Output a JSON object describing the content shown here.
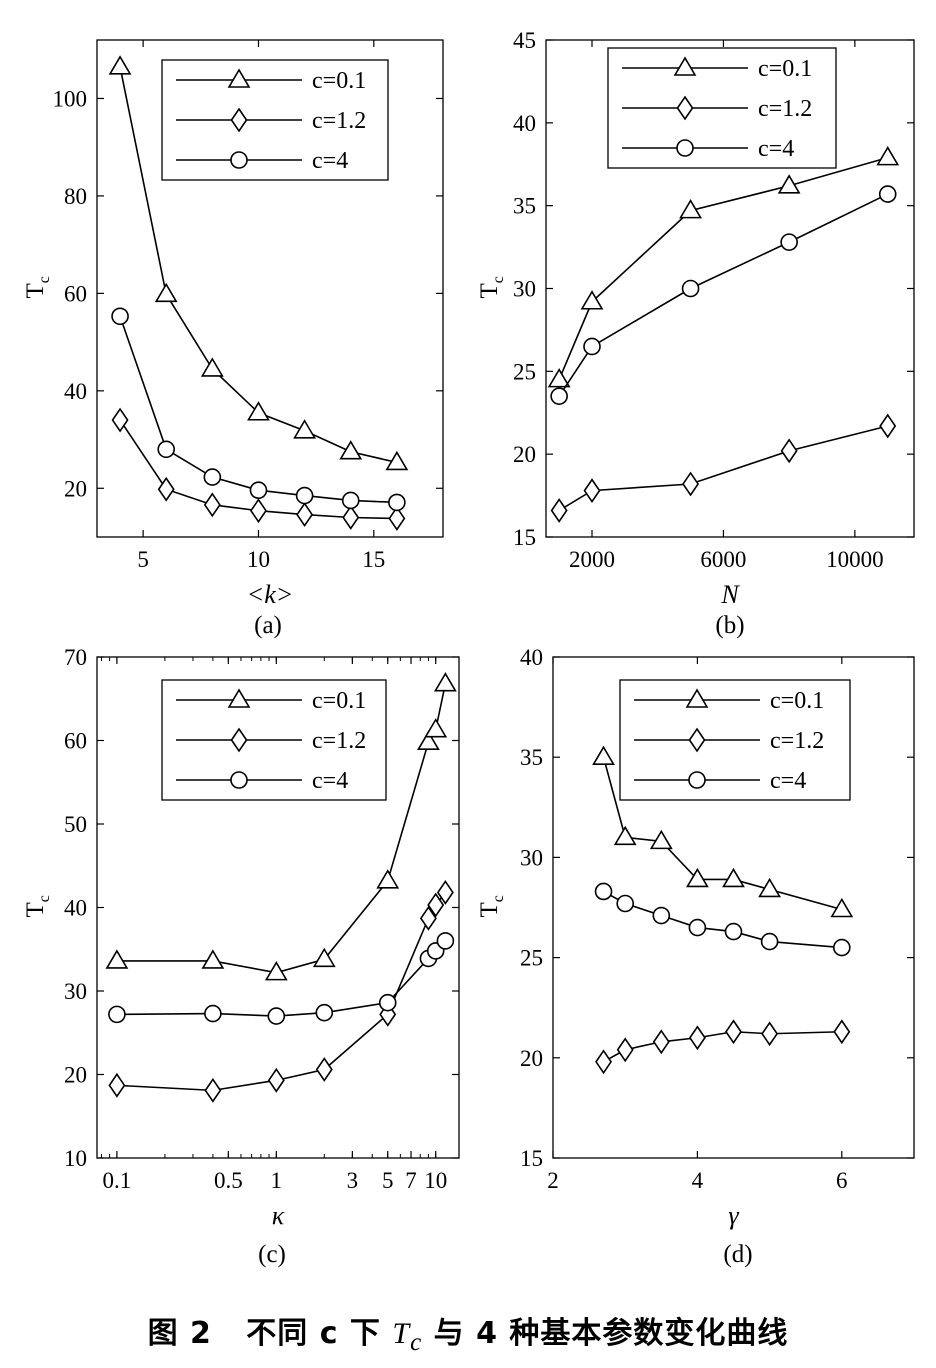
{
  "caption": {
    "prefix": "图 2",
    "text_before": "不同 c 下 ",
    "symbol": "T",
    "symbol_sub": "c",
    "text_after": " 与 4 种基本参数变化曲线"
  },
  "chart_data": [
    {
      "id": "a",
      "panel_label": "(a)",
      "type": "line",
      "xlabel": "<k>",
      "ylabel": "T",
      "ylabel_sub": "c",
      "x_scale": "linear",
      "xlim": [
        3,
        18
      ],
      "ylim": [
        10,
        112
      ],
      "xticks": [
        5,
        10,
        15
      ],
      "xtick_labels": [
        "5",
        "10",
        "15"
      ],
      "yticks": [
        20,
        40,
        60,
        80,
        100
      ],
      "ytick_labels": [
        "20",
        "40",
        "60",
        "80",
        "100"
      ],
      "legend_position": "top-right",
      "series": [
        {
          "name": "c=0.1",
          "marker": "triangle",
          "x": [
            4,
            6,
            8,
            10,
            12,
            14,
            16
          ],
          "y": [
            106.5,
            59.8,
            44.5,
            35.5,
            31.8,
            27.5,
            25.3
          ]
        },
        {
          "name": "c=1.2",
          "marker": "diamond",
          "x": [
            4,
            6,
            8,
            10,
            12,
            14,
            16
          ],
          "y": [
            34,
            19.8,
            16.6,
            15.4,
            14.6,
            14,
            13.8
          ]
        },
        {
          "name": "c=4",
          "marker": "circle",
          "x": [
            4,
            6,
            8,
            10,
            12,
            14,
            16
          ],
          "y": [
            55.3,
            28,
            22.3,
            19.6,
            18.5,
            17.5,
            17.1
          ]
        }
      ]
    },
    {
      "id": "b",
      "panel_label": "(b)",
      "type": "line",
      "xlabel": "N",
      "ylabel": "T",
      "ylabel_sub": "c",
      "x_scale": "linear",
      "xlim": [
        600,
        11800
      ],
      "ylim": [
        15,
        45
      ],
      "xticks": [
        2000,
        6000,
        10000
      ],
      "xtick_labels": [
        "2000",
        "6000",
        "10000"
      ],
      "yticks": [
        15,
        20,
        25,
        30,
        35,
        40,
        45
      ],
      "ytick_labels": [
        "15",
        "20",
        "25",
        "30",
        "35",
        "40",
        "45"
      ],
      "legend_position": "top-right",
      "series": [
        {
          "name": "c=0.1",
          "marker": "triangle",
          "x": [
            1000,
            2000,
            5000,
            8000,
            11000
          ],
          "y": [
            24.5,
            29.2,
            34.7,
            36.2,
            37.9
          ]
        },
        {
          "name": "c=1.2",
          "marker": "diamond",
          "x": [
            1000,
            2000,
            5000,
            8000,
            11000
          ],
          "y": [
            16.6,
            17.8,
            18.2,
            20.2,
            21.7
          ]
        },
        {
          "name": "c=4",
          "marker": "circle",
          "x": [
            1000,
            2000,
            5000,
            8000,
            11000
          ],
          "y": [
            23.5,
            26.5,
            30,
            32.8,
            35.7
          ]
        }
      ]
    },
    {
      "id": "c",
      "panel_label": "(c)",
      "type": "line",
      "xlabel": "κ",
      "ylabel": "T",
      "ylabel_sub": "c",
      "x_scale": "log",
      "xlim": [
        0.075,
        14
      ],
      "ylim": [
        10,
        70
      ],
      "xticks": [
        0.1,
        0.5,
        1,
        3,
        5,
        7,
        10
      ],
      "xtick_labels": [
        "0.1",
        "0.5",
        "1",
        "3",
        "5",
        "7",
        "10"
      ],
      "yticks": [
        10,
        20,
        30,
        40,
        50,
        60,
        70
      ],
      "ytick_labels": [
        "10",
        "20",
        "30",
        "40",
        "50",
        "60",
        "70"
      ],
      "legend_position": "top-right",
      "series": [
        {
          "name": "c=0.1",
          "marker": "triangle",
          "x": [
            0.1,
            0.4,
            1,
            2,
            5,
            9,
            10,
            11.5
          ],
          "y": [
            33.6,
            33.6,
            32.2,
            33.8,
            43.2,
            59.8,
            61.3,
            66.8
          ]
        },
        {
          "name": "c=1.2",
          "marker": "diamond",
          "x": [
            0.1,
            0.4,
            1,
            2,
            5,
            9,
            10,
            11.5
          ],
          "y": [
            18.7,
            18.1,
            19.3,
            20.6,
            27.2,
            38.7,
            40.3,
            41.8
          ]
        },
        {
          "name": "c=4",
          "marker": "circle",
          "x": [
            0.1,
            0.4,
            1,
            2,
            5,
            9,
            10,
            11.5
          ],
          "y": [
            27.2,
            27.3,
            27,
            27.4,
            28.6,
            33.9,
            34.8,
            36
          ]
        }
      ]
    },
    {
      "id": "d",
      "panel_label": "(d)",
      "type": "line",
      "xlabel": "γ",
      "ylabel": "T",
      "ylabel_sub": "c",
      "x_scale": "linear",
      "xlim": [
        2,
        7
      ],
      "ylim": [
        15,
        40
      ],
      "xticks": [
        2,
        4,
        6
      ],
      "xtick_labels": [
        "2",
        "4",
        "6"
      ],
      "yticks": [
        15,
        20,
        25,
        30,
        35,
        40
      ],
      "ytick_labels": [
        "15",
        "20",
        "25",
        "30",
        "35",
        "40"
      ],
      "legend_position": "top-right",
      "series": [
        {
          "name": "c=0.1",
          "marker": "triangle",
          "x": [
            2.7,
            3,
            3.5,
            4,
            4.5,
            5,
            6
          ],
          "y": [
            35,
            31,
            30.8,
            28.9,
            28.9,
            28.4,
            27.4
          ]
        },
        {
          "name": "c=1.2",
          "marker": "diamond",
          "x": [
            2.7,
            3,
            3.5,
            4,
            4.5,
            5,
            6
          ],
          "y": [
            19.8,
            20.4,
            20.8,
            21,
            21.3,
            21.2,
            21.3
          ]
        },
        {
          "name": "c=4",
          "marker": "circle",
          "x": [
            2.7,
            3,
            3.5,
            4,
            4.5,
            5,
            6
          ],
          "y": [
            28.3,
            27.7,
            27.1,
            26.5,
            26.3,
            25.8,
            25.5
          ]
        }
      ]
    }
  ]
}
